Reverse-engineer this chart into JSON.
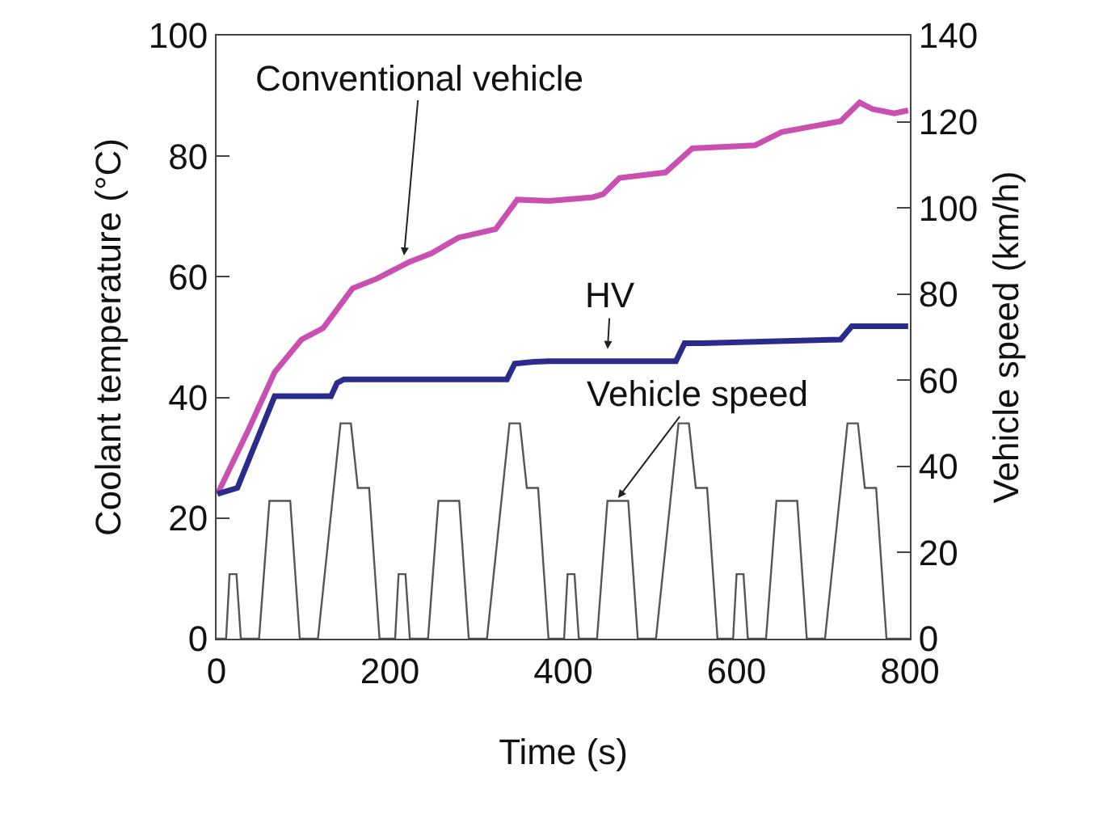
{
  "chart_data": {
    "type": "line",
    "xlabel": "Time (s)",
    "ylabel": "Coolant temperature (°C)",
    "y2label": "Vehicle speed (km/h)",
    "xlim": [
      0,
      800
    ],
    "xticks": [
      0,
      200,
      400,
      600,
      800
    ],
    "ylim": [
      0,
      100
    ],
    "yticks": [
      0,
      20,
      40,
      60,
      80,
      100
    ],
    "y2lim": [
      0,
      140
    ],
    "y2ticks": [
      0,
      20,
      40,
      60,
      80,
      100,
      120,
      140
    ],
    "grid": false,
    "marker": "none",
    "line_style": "solid",
    "series": [
      {
        "color": "#c94fb0",
        "x": [
          1,
          36,
          67,
          98,
          123,
          157,
          185,
          223,
          248,
          279,
          322,
          347,
          384,
          434,
          446,
          465,
          518,
          549,
          621,
          652,
          720,
          742,
          757,
          782,
          798
        ],
        "values": [
          24,
          34.4,
          44.2,
          49.6,
          51.5,
          58.1,
          59.7,
          62.5,
          63.9,
          66.5,
          67.9,
          72.8,
          72.6,
          73.2,
          73.7,
          76.4,
          77.3,
          81.3,
          81.8,
          84,
          85.8,
          88.9,
          87.8,
          87.1,
          87.6
        ]
      },
      {
        "color": "#2b2b8c",
        "x": [
          1,
          24,
          67,
          132,
          139,
          147,
          335,
          344,
          366,
          384,
          530,
          540,
          561,
          720,
          733,
          798
        ],
        "values": [
          24,
          25,
          40.2,
          40.2,
          42.4,
          43,
          43,
          45.6,
          45.9,
          46,
          46,
          49,
          49,
          49.6,
          51.8,
          51.8
        ]
      },
      {
        "color": "#555555",
        "axis": "y2",
        "x": [
          0,
          11,
          15,
          23,
          28,
          49,
          61,
          85,
          96,
          117,
          143,
          155,
          163,
          176,
          188,
          206,
          210,
          218,
          223,
          244,
          256,
          280,
          291,
          312,
          338,
          350,
          358,
          371,
          383,
          401,
          405,
          413,
          418,
          439,
          451,
          475,
          486,
          507,
          533,
          545,
          553,
          566,
          578,
          596,
          600,
          608,
          613,
          634,
          646,
          670,
          681,
          702,
          728,
          740,
          748,
          761,
          773,
          800
        ],
        "values": [
          0,
          0,
          15,
          15,
          0,
          0,
          32,
          32,
          0,
          0,
          50,
          50,
          35,
          35,
          0,
          0,
          15,
          15,
          0,
          0,
          32,
          32,
          0,
          0,
          50,
          50,
          35,
          35,
          0,
          0,
          15,
          15,
          0,
          0,
          32,
          32,
          0,
          0,
          50,
          50,
          35,
          35,
          0,
          0,
          15,
          15,
          0,
          0,
          32,
          32,
          0,
          0,
          50,
          50,
          35,
          35,
          0,
          0
        ]
      }
    ],
    "annotations": [
      {
        "text": "Conventional vehicle",
        "x": 216,
        "y": 63
      },
      {
        "text": "HV",
        "x": 451,
        "y": 47.5
      },
      {
        "text": "Vehicle speed",
        "x": 461,
        "y": 22.9
      }
    ]
  }
}
